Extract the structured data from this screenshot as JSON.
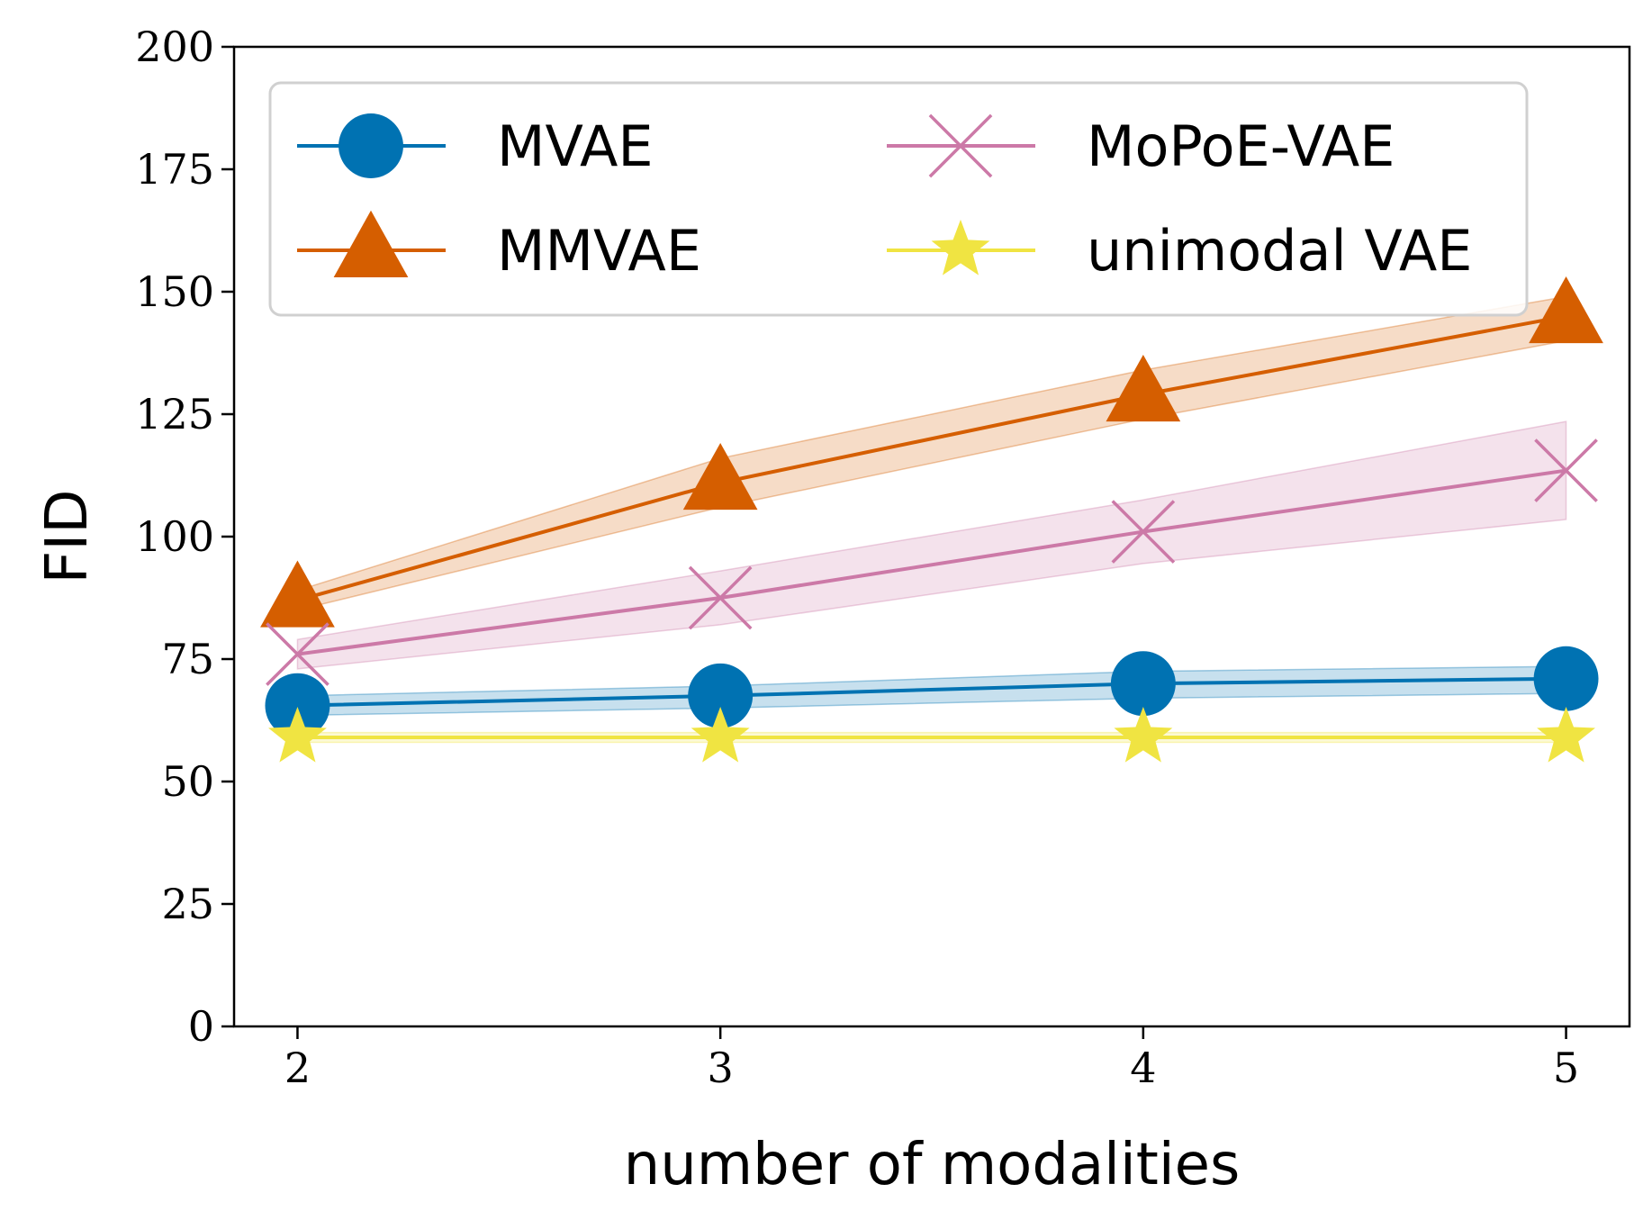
{
  "chart_data": {
    "type": "line",
    "xlabel": "number of modalities",
    "ylabel": "FID",
    "x": [
      2,
      3,
      4,
      5
    ],
    "xticks": [
      "2",
      "3",
      "4",
      "5"
    ],
    "xlim": [
      1.85,
      5.15
    ],
    "ylim": [
      0,
      200
    ],
    "yticks": [
      "0",
      "25",
      "50",
      "75",
      "100",
      "125",
      "150",
      "175",
      "200"
    ],
    "grid": false,
    "legend_position": "top",
    "series": [
      {
        "name": "MVAE",
        "color": "#0072b2",
        "marker": "circle",
        "values": [
          65.5,
          67.5,
          70,
          71
        ],
        "lower": [
          63.5,
          65,
          67,
          68
        ],
        "upper": [
          67.5,
          69.5,
          72.5,
          73.5
        ]
      },
      {
        "name": "MMVAE",
        "color": "#d55e00",
        "marker": "triangle",
        "values": [
          87,
          111,
          129,
          145
        ],
        "lower": [
          85,
          106,
          124,
          140
        ],
        "upper": [
          89,
          116,
          134,
          149
        ]
      },
      {
        "name": "MoPoE-VAE",
        "color": "#cc79a7",
        "marker": "x",
        "values": [
          76,
          87.5,
          101,
          113.5
        ],
        "lower": [
          73,
          82,
          94.5,
          103.5
        ],
        "upper": [
          79,
          93,
          107.5,
          123.5
        ]
      },
      {
        "name": "unimodal VAE",
        "color": "#f0e442",
        "marker": "star",
        "values": [
          59,
          59,
          59,
          59
        ],
        "lower": [
          58,
          58,
          58,
          58
        ],
        "upper": [
          60,
          60,
          60,
          60
        ]
      }
    ]
  }
}
